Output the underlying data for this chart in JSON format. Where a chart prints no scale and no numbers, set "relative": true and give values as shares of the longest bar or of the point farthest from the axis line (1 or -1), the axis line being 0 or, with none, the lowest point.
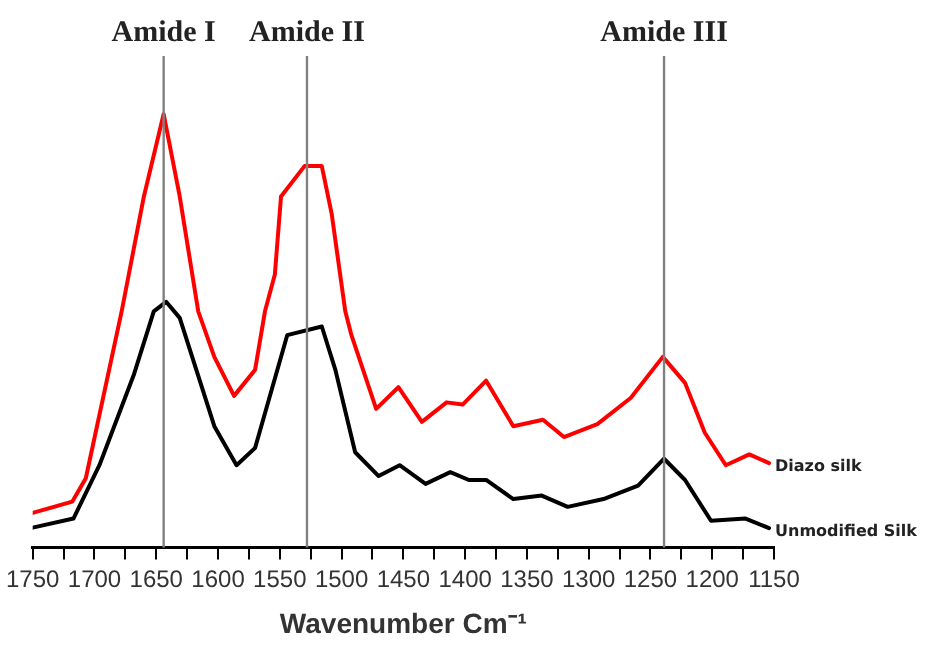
{
  "chart_data": {
    "type": "line",
    "relative": true,
    "xlabel": "Wavenumber Cm⁻¹",
    "xlim": [
      1750,
      1150
    ],
    "xticks": [
      1750,
      {
        "value": 1725,
        "label": null
      },
      1700,
      {
        "value": 1675,
        "label": null
      },
      1650,
      {
        "value": 1625,
        "label": null
      },
      1600,
      {
        "value": 1575,
        "label": null
      },
      1550,
      {
        "value": 1525,
        "label": null
      },
      1500,
      {
        "value": 1475,
        "label": null
      },
      1450,
      {
        "value": 1425,
        "label": null
      },
      1400,
      {
        "value": 1375,
        "label": null
      },
      1350,
      {
        "value": 1325,
        "label": null
      },
      1300,
      {
        "value": 1275,
        "label": null
      },
      1250,
      {
        "value": 1225,
        "label": null
      },
      1200,
      {
        "value": 1175,
        "label": null
      },
      1150
    ],
    "grid": false,
    "legend": false,
    "marker": "none",
    "line_style": "solid",
    "ref_lines": [
      {
        "axis": "x",
        "value": 1644,
        "label": "Amide I",
        "color": "#808080"
      },
      {
        "axis": "x",
        "value": 1528,
        "label": "Amide II",
        "color": "#808080"
      },
      {
        "axis": "x",
        "value": 1239,
        "label": "Amide III",
        "color": "#808080"
      }
    ],
    "series": [
      {
        "name": "Diazo silk",
        "color": "#ff0000",
        "x": [
          1750,
          1718,
          1707,
          1678,
          1660,
          1644,
          1631,
          1616,
          1603,
          1587,
          1570,
          1562,
          1554,
          1549,
          1530,
          1516,
          1508,
          1497,
          1492,
          1472,
          1454,
          1435,
          1415,
          1402,
          1383,
          1361,
          1337,
          1320,
          1293,
          1266,
          1240,
          1222,
          1206,
          1189,
          1170,
          1154
        ],
        "values": [
          0.08,
          0.106,
          0.16,
          0.545,
          0.81,
          1.0,
          0.81,
          0.545,
          0.44,
          0.35,
          0.41,
          0.545,
          0.63,
          0.81,
          0.88,
          0.88,
          0.77,
          0.545,
          0.49,
          0.32,
          0.37,
          0.29,
          0.335,
          0.33,
          0.385,
          0.28,
          0.295,
          0.255,
          0.285,
          0.345,
          0.44,
          0.38,
          0.265,
          0.19,
          0.215,
          0.195
        ]
      },
      {
        "name": "Unmodified Silk",
        "color": "#000000",
        "x": [
          1750,
          1717,
          1696,
          1668,
          1652,
          1642,
          1631,
          1603,
          1585,
          1570,
          1544,
          1516,
          1505,
          1489,
          1470,
          1453,
          1432,
          1412,
          1397,
          1383,
          1361,
          1338,
          1317,
          1288,
          1260,
          1239,
          1222,
          1201,
          1173,
          1154
        ],
        "values": [
          0.046,
          0.067,
          0.19,
          0.4,
          0.545,
          0.567,
          0.53,
          0.28,
          0.19,
          0.23,
          0.49,
          0.51,
          0.41,
          0.22,
          0.165,
          0.19,
          0.147,
          0.174,
          0.156,
          0.156,
          0.112,
          0.12,
          0.094,
          0.112,
          0.143,
          0.205,
          0.156,
          0.062,
          0.067,
          0.045
        ]
      }
    ]
  }
}
